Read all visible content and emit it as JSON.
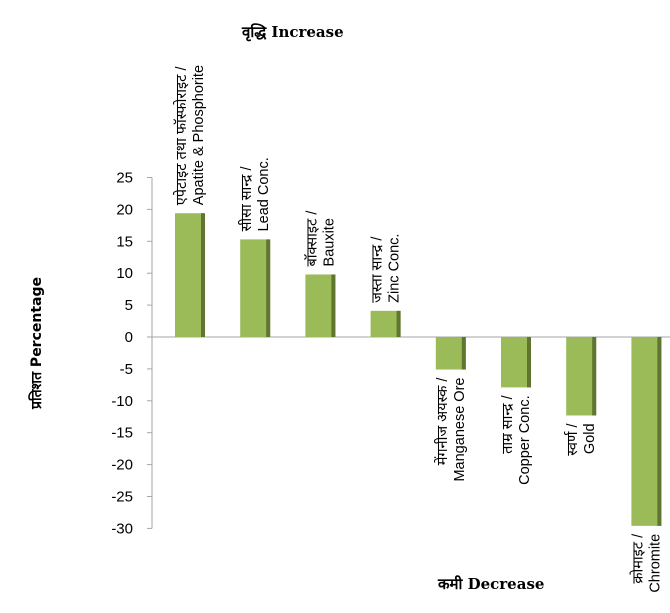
{
  "chart_data": {
    "type": "bar",
    "categories": [
      [
        "एपेटाइट तथा फॉस्फोराइट /",
        "Apatite & Phosphorite"
      ],
      [
        "सीसा सान्द्र /",
        "Lead Conc."
      ],
      [
        "बॉक्साइट  /",
        "Bauxite"
      ],
      [
        "जस्ता सान्द्र /",
        "Zinc Conc."
      ],
      [
        "मेंगनीज अयस्क /",
        "Manganese Ore"
      ],
      [
        "ताम्र सान्द्र  /",
        "Copper Conc."
      ],
      [
        "स्वर्ण /",
        "Gold"
      ],
      [
        "क्रोमाइट /",
        "Chromite"
      ]
    ],
    "values": [
      19.4,
      15.3,
      9.8,
      4.1,
      -5.1,
      -7.9,
      -12.3,
      -29.6
    ],
    "ylabel": "प्रतिशत Percentage",
    "ylim": [
      -30,
      25
    ],
    "yticks": [
      25,
      20,
      15,
      10,
      5,
      0,
      -5,
      -10,
      -15,
      -20,
      -25,
      -30
    ],
    "annotations": {
      "increase": "वृद्धि Increase",
      "decrease": "कमी Decrease"
    },
    "colors": {
      "bar": "#9bbb59",
      "bar_shade": "#5f7530",
      "axis": "#a6a6a6"
    },
    "grid": false,
    "legend": "none"
  }
}
